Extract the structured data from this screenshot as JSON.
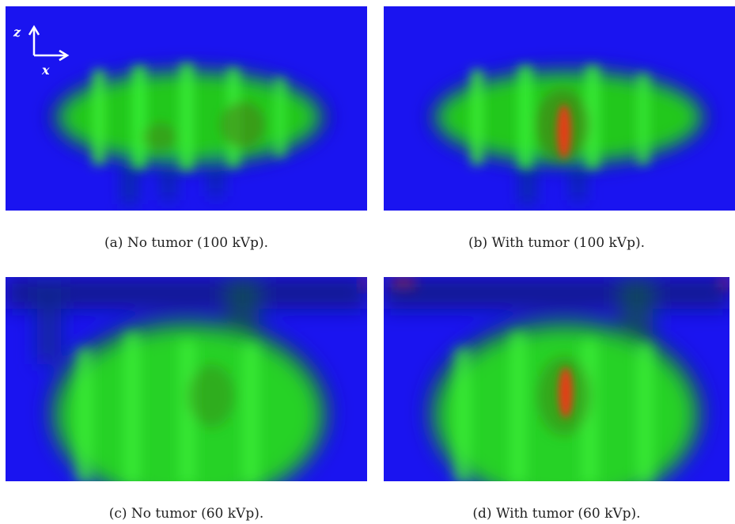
{
  "figure": {
    "panels": [
      {
        "caption": "(a) No tumor (100 kVp).",
        "tumor": false,
        "energy_kvp": 100
      },
      {
        "caption": "(b) With tumor (100 kVp).",
        "tumor": true,
        "energy_kvp": 100
      },
      {
        "caption": "(c) No tumor (60 kVp).",
        "tumor": false,
        "energy_kvp": 60
      },
      {
        "caption": "(d) With tumor (60 kVp).",
        "tumor": true,
        "energy_kvp": 60
      }
    ],
    "axes": {
      "vertical": "z",
      "horizontal": "x"
    },
    "colors": {
      "background": "#1a14f0",
      "tissue": "#1ee61e",
      "tumor": "#e63c14"
    }
  }
}
